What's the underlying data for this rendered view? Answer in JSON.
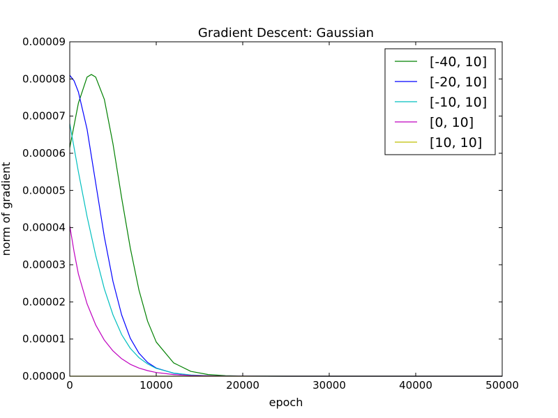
{
  "chart_data": {
    "type": "line",
    "title": "Gradient Descent: Gaussian",
    "xlabel": "epoch",
    "ylabel": "norm of gradient",
    "xlim": [
      0,
      50000
    ],
    "ylim": [
      0,
      9e-05
    ],
    "xticks": [
      0,
      10000,
      20000,
      30000,
      40000,
      50000
    ],
    "yticks": [
      0,
      1e-05,
      2e-05,
      3e-05,
      4e-05,
      5e-05,
      6e-05,
      7e-05,
      8e-05,
      9e-05
    ],
    "xtick_labels": [
      "0",
      "10000",
      "20000",
      "30000",
      "40000",
      "50000"
    ],
    "ytick_labels": [
      "0.00000",
      "0.00001",
      "0.00002",
      "0.00003",
      "0.00004",
      "0.00005",
      "0.00006",
      "0.00007",
      "0.00008",
      "0.00009"
    ],
    "grid": false,
    "legend_position": "top-right",
    "series": [
      {
        "name": "[-40, 10]",
        "color": "#008000",
        "x": [
          0,
          1000,
          2000,
          2500,
          3000,
          4000,
          5000,
          6000,
          7000,
          8000,
          9000,
          10000,
          12000,
          14000,
          16000,
          18000,
          20000,
          25000,
          30000,
          50000
        ],
        "y": [
          6.15e-05,
          7.35e-05,
          8.05e-05,
          8.12e-05,
          8.05e-05,
          7.45e-05,
          6.25e-05,
          4.8e-05,
          3.45e-05,
          2.32e-05,
          1.48e-05,
          9.2e-06,
          3.6e-06,
          1.3e-06,
          4.5e-07,
          1.5e-07,
          5e-08,
          0.0,
          0.0,
          0.0
        ]
      },
      {
        "name": "[-20, 10]",
        "color": "#0000ff",
        "x": [
          0,
          500,
          1000,
          2000,
          3000,
          4000,
          5000,
          6000,
          7000,
          8000,
          9000,
          10000,
          12000,
          14000,
          16000,
          18000,
          20000,
          25000,
          50000
        ],
        "y": [
          8.1e-05,
          7.95e-05,
          7.65e-05,
          6.65e-05,
          5.2e-05,
          3.75e-05,
          2.55e-05,
          1.65e-05,
          1.02e-05,
          6.2e-06,
          3.7e-06,
          2.2e-06,
          8e-07,
          2.8e-07,
          1e-07,
          4e-08,
          1e-08,
          0.0,
          0.0
        ]
      },
      {
        "name": "[-10, 10]",
        "color": "#00bfbf",
        "x": [
          0,
          500,
          1000,
          2000,
          3000,
          4000,
          5000,
          6000,
          7000,
          8000,
          9000,
          10000,
          12000,
          14000,
          16000,
          18000,
          20000,
          25000,
          50000
        ],
        "y": [
          6.8e-05,
          6.15e-05,
          5.5e-05,
          4.3e-05,
          3.25e-05,
          2.35e-05,
          1.65e-05,
          1.12e-05,
          7.5e-06,
          5e-06,
          3.3e-06,
          2.1e-06,
          8.5e-07,
          3.3e-07,
          1.3e-07,
          5e-08,
          2e-08,
          0.0,
          0.0
        ]
      },
      {
        "name": "[0, 10]",
        "color": "#bf00bf",
        "x": [
          0,
          500,
          1000,
          2000,
          3000,
          4000,
          5000,
          6000,
          7000,
          8000,
          9000,
          10000,
          12000,
          14000,
          16000,
          18000,
          20000,
          25000,
          50000
        ],
        "y": [
          4.05e-05,
          3.35e-05,
          2.75e-05,
          1.95e-05,
          1.38e-05,
          9.7e-06,
          6.8e-06,
          4.7e-06,
          3.2e-06,
          2.2e-06,
          1.5e-06,
          1e-06,
          4.5e-07,
          2e-07,
          9e-08,
          4e-08,
          2e-08,
          0.0,
          0.0
        ]
      },
      {
        "name": "[10, 10]",
        "color": "#bfbf00",
        "x": [
          0,
          10000,
          20000,
          30000,
          40000,
          50000
        ],
        "y": [
          0.0,
          0.0,
          0.0,
          0.0,
          0.0,
          0.0
        ]
      }
    ]
  }
}
